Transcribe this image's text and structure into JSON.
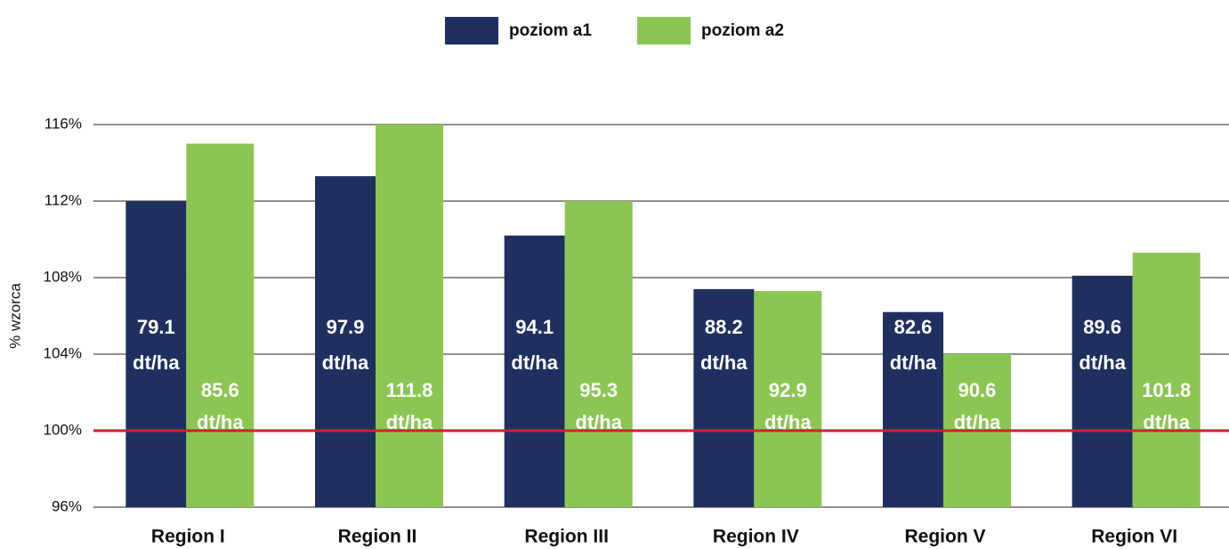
{
  "chart_data": {
    "type": "bar",
    "ylabel": "% wzorca",
    "categories": [
      "Region I",
      "Region II",
      "Region III",
      "Region IV",
      "Region V",
      "Region VI"
    ],
    "series": [
      {
        "name": "poziom a1",
        "color": "#1f3060",
        "values": [
          112.0,
          113.3,
          110.2,
          107.4,
          106.2,
          108.1
        ],
        "yields": [
          79.1,
          97.9,
          94.1,
          88.2,
          82.6,
          89.6
        ]
      },
      {
        "name": "poziom a2",
        "color": "#8bc653",
        "values": [
          115.0,
          116.0,
          112.0,
          107.3,
          104.0,
          109.3
        ],
        "yields": [
          85.6,
          111.8,
          95.3,
          92.9,
          90.6,
          101.8
        ]
      }
    ],
    "yield_unit": "dt/ha",
    "ylim": [
      96,
      116
    ],
    "yticks": [
      {
        "value": 96,
        "label": "96%"
      },
      {
        "value": 100,
        "label": "100%"
      },
      {
        "value": 104,
        "label": "104%"
      },
      {
        "value": 108,
        "label": "108%"
      },
      {
        "value": 112,
        "label": "112%"
      },
      {
        "value": 116,
        "label": "116%"
      }
    ],
    "grid": true,
    "reference_line": {
      "value": 100,
      "color": "#c8262c"
    },
    "legend": "top"
  }
}
